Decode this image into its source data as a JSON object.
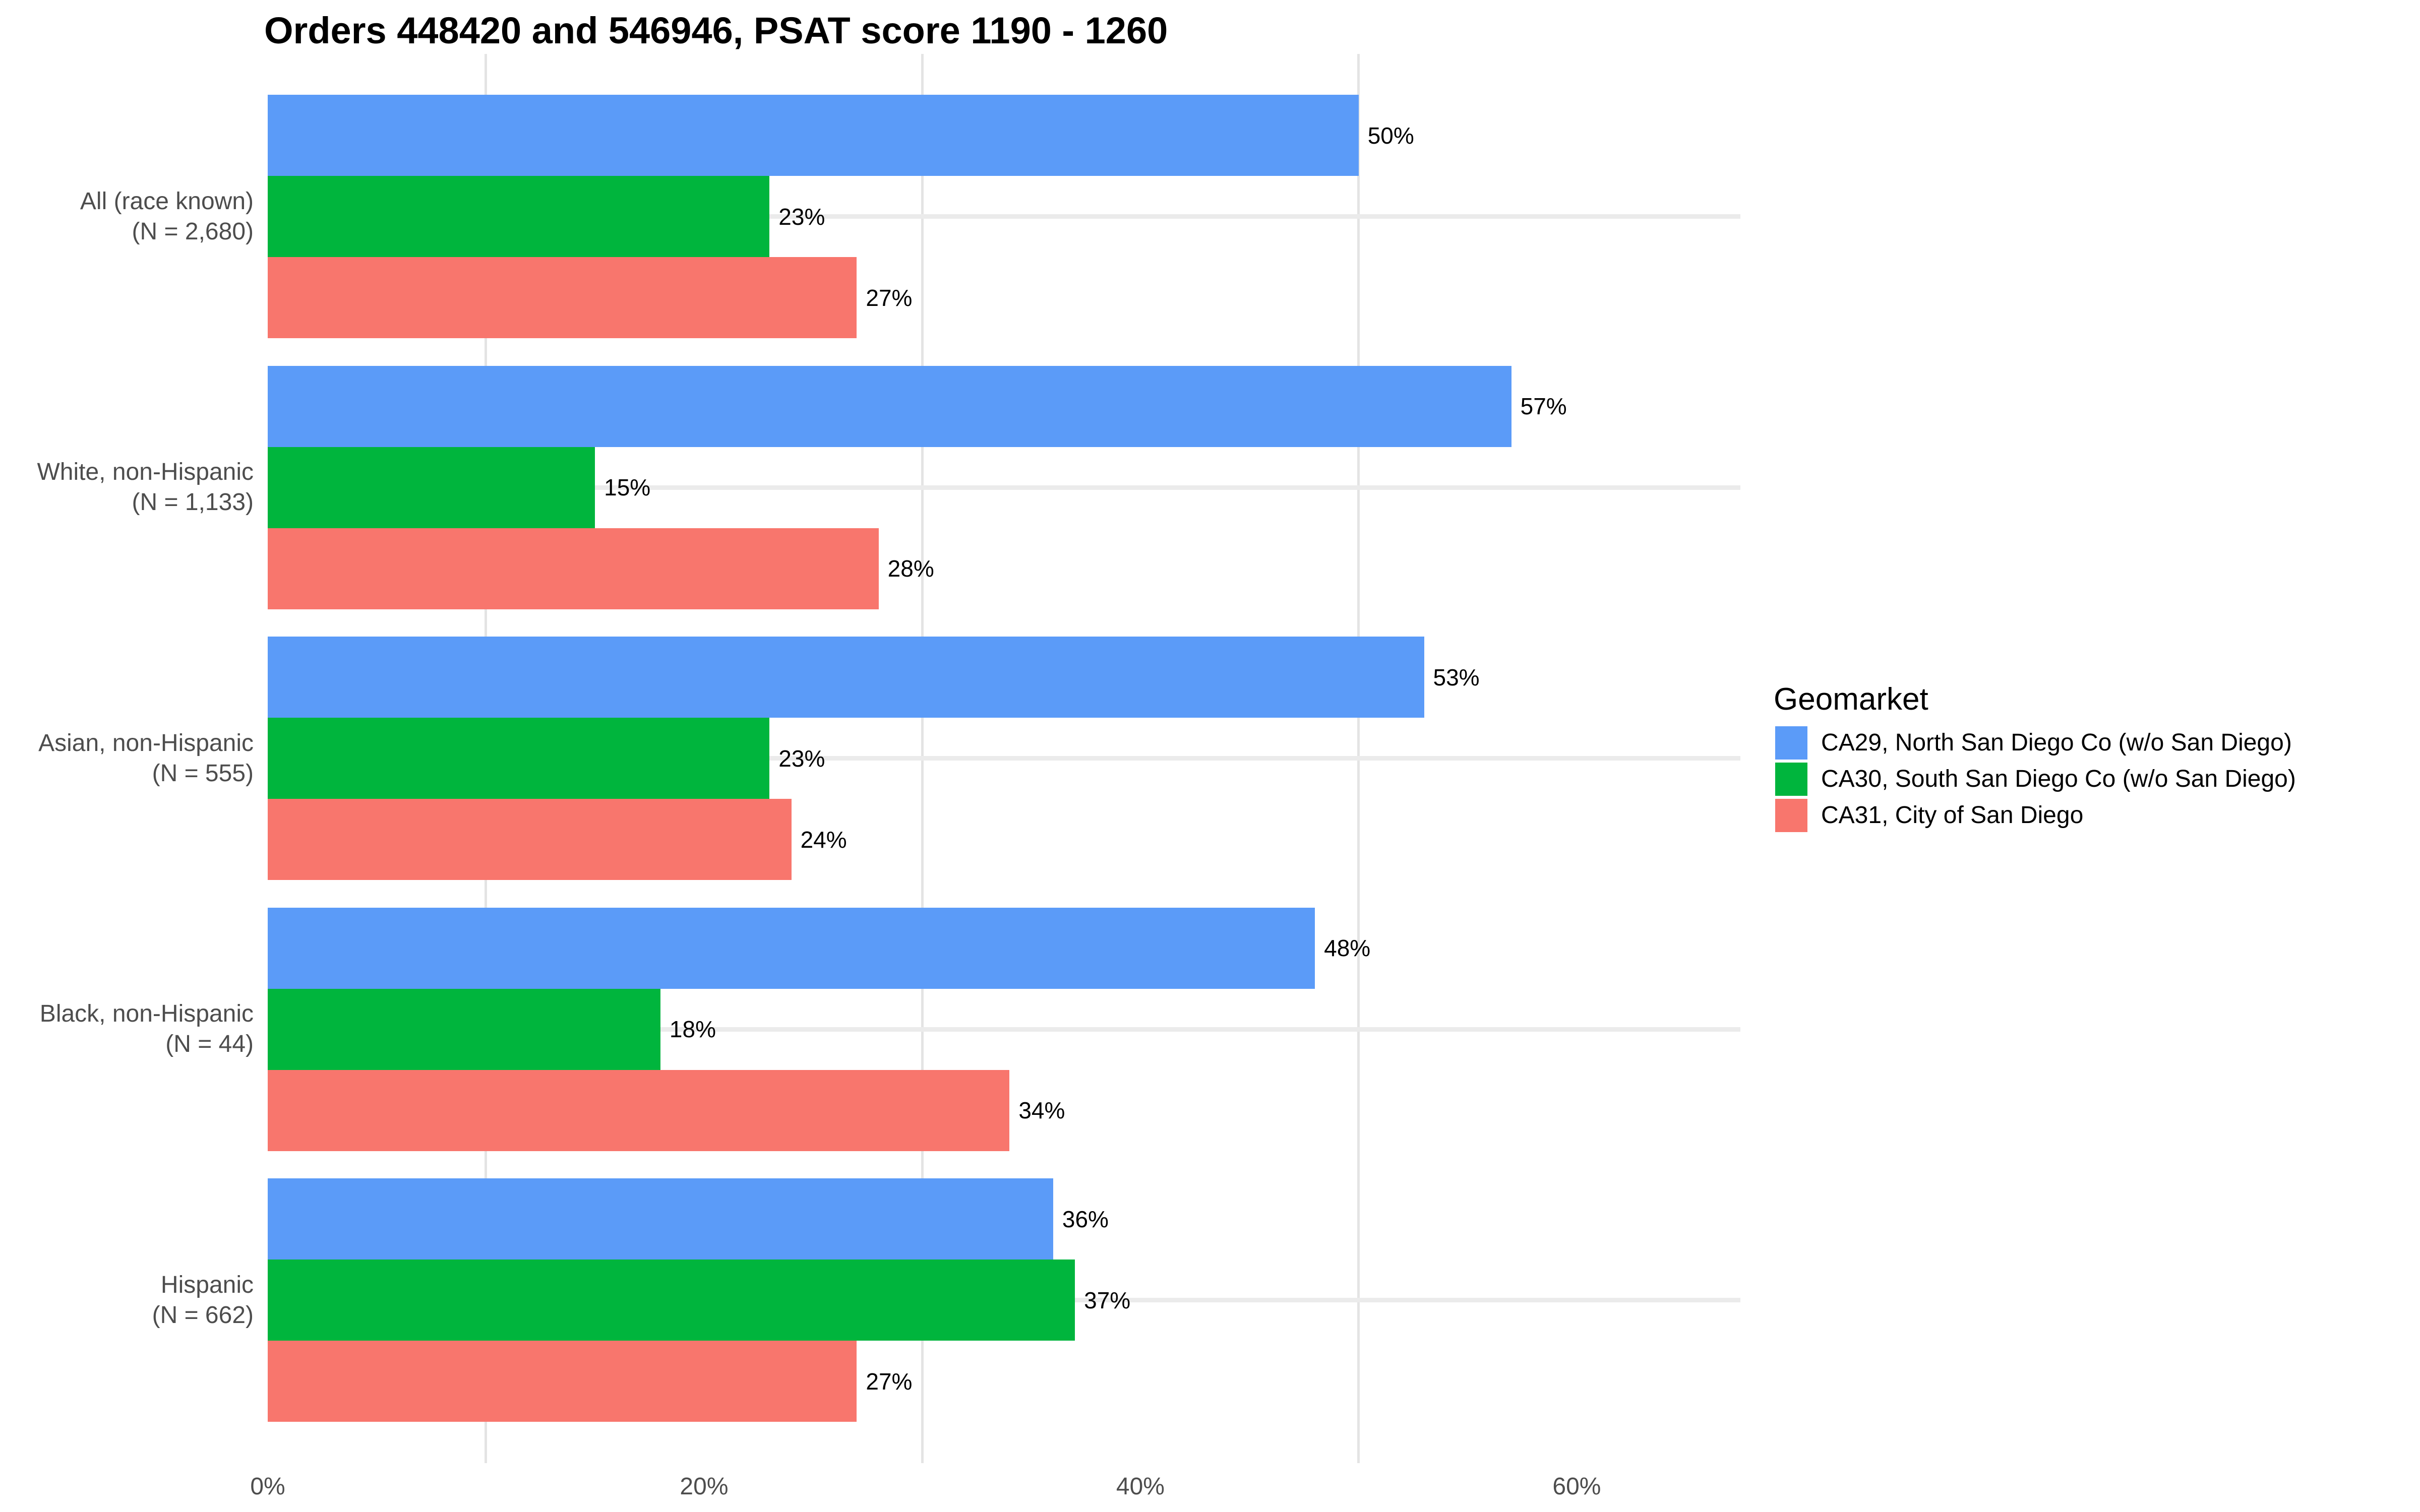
{
  "title": "Orders 448420 and 546946, PSAT score 1190 - 1260",
  "chart_data": {
    "type": "bar",
    "orientation": "horizontal",
    "title": "Orders 448420 and 546946, PSAT score 1190 - 1260",
    "legend_title": "Geomarket",
    "legend_position": "right",
    "grid": "on",
    "categories": [
      {
        "line1": "All (race known)",
        "line2": "(N = 2,680)"
      },
      {
        "line1": "White, non-Hispanic",
        "line2": "(N = 1,133)"
      },
      {
        "line1": "Asian, non-Hispanic",
        "line2": "(N = 555)"
      },
      {
        "line1": "Black, non-Hispanic",
        "line2": "(N = 44)"
      },
      {
        "line1": "Hispanic",
        "line2": "(N = 662)"
      }
    ],
    "series": [
      {
        "name": "CA29, North San Diego Co (w/o San Diego)",
        "color": "#5b9bf8",
        "values": [
          50,
          57,
          53,
          48,
          36
        ]
      },
      {
        "name": "CA30, South San Diego Co (w/o San Diego)",
        "color": "#00b53d",
        "values": [
          23,
          15,
          23,
          18,
          37
        ]
      },
      {
        "name": "CA31, City of San Diego",
        "color": "#f8766d",
        "values": [
          27,
          28,
          24,
          34,
          27
        ]
      }
    ],
    "value_suffix": "%",
    "xlabel": "",
    "ylabel": "",
    "x_ticks": [
      "0%",
      "20%",
      "40%",
      "60%"
    ],
    "x_tick_values": [
      0,
      20,
      40,
      60
    ],
    "x_minor_gridline_values": [
      10,
      30,
      50
    ],
    "xlim": [
      0,
      67.5
    ]
  },
  "colors": {
    "background": "#ffffff",
    "major_hgrid": "#ebebeb",
    "minor_vgrid": "#e4e4e4",
    "axis_text": "#4d4d4d",
    "title_text": "#000000",
    "bar_label_text": "#000000"
  }
}
